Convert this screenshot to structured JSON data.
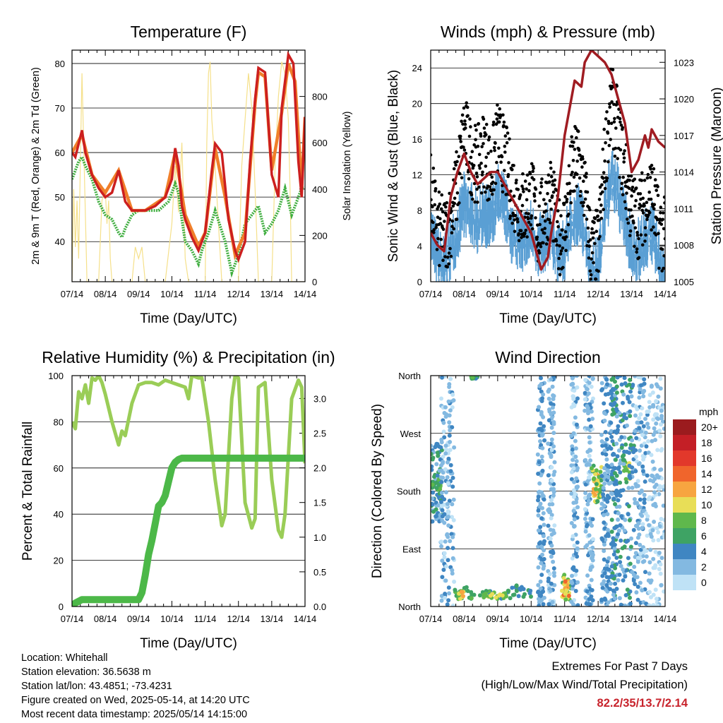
{
  "colors": {
    "temp2m": "#cc1f1f",
    "temp9m": "#f07f2a",
    "dew": "#3fae3f",
    "solar": "#f5e08a",
    "wind": "#5a9fd4",
    "gust": "#000000",
    "pressure": "#a01c22",
    "rh": "#9acd57",
    "rain": "#4cb848",
    "extremes": "#c8232c"
  },
  "footer": {
    "location": "Location: Whitehall",
    "elevation": "Station elevation: 36.5638 m",
    "latlon": "Station lat/lon: 43.4851; -73.4231",
    "created": "Figure created on Wed, 2025-05-14, at 14:20 UTC",
    "recent": "Most recent data timestamp: 2025/05/14 14:15:00"
  },
  "extremes": {
    "title": "Extremes For Past 7 Days",
    "subtitle": "(High/Low/Max Wind/Total Precipitation)",
    "values": "82.2/35/13.7/2.14"
  },
  "chart_data": [
    {
      "type": "line",
      "title": "Temperature (F)",
      "xlabel": "Time (Day/UTC)",
      "ylabel": "2m & 9m T (Red, Orange) & 2m Td (Green)",
      "y2label": "Solar Insolation (Yellow)",
      "xticks": [
        "07/14",
        "08/14",
        "09/14",
        "10/14",
        "11/14",
        "12/14",
        "13/14",
        "14/14"
      ],
      "xlim": [
        0,
        7
      ],
      "ylim": [
        31,
        83
      ],
      "yticks": [
        40,
        50,
        60,
        70,
        80
      ],
      "y2lim": [
        0,
        1000
      ],
      "y2ticks": [
        0,
        200,
        400,
        600,
        800
      ],
      "grid": true,
      "series": [
        {
          "name": "2m T",
          "x": [
            0,
            0.1,
            0.2,
            0.3,
            0.4,
            0.6,
            0.8,
            1.0,
            1.2,
            1.4,
            1.6,
            1.8,
            2.0,
            2.2,
            2.5,
            2.8,
            3.0,
            3.1,
            3.2,
            3.3,
            3.4,
            3.6,
            3.8,
            4.0,
            4.2,
            4.3,
            4.5,
            4.7,
            4.9,
            5.0,
            5.2,
            5.35,
            5.5,
            5.6,
            5.8,
            6.0,
            6.2,
            6.3,
            6.5,
            6.65,
            6.8,
            6.9,
            7.0
          ],
          "values": [
            60,
            59,
            62,
            65,
            60,
            55,
            52,
            50,
            51,
            56,
            49,
            47,
            47,
            47,
            48,
            50,
            54,
            61,
            57,
            48,
            45,
            41,
            38,
            42,
            56,
            62,
            60,
            45,
            38,
            36,
            40,
            58,
            72,
            79,
            78,
            55,
            50,
            70,
            82,
            80,
            58,
            50,
            68
          ]
        },
        {
          "name": "9m T",
          "x": [
            0,
            0.3,
            0.6,
            1.0,
            1.4,
            1.8,
            2.2,
            2.8,
            3.1,
            3.4,
            3.8,
            4.0,
            4.3,
            4.6,
            4.9,
            5.2,
            5.5,
            5.6,
            5.8,
            6.0,
            6.3,
            6.5,
            6.7,
            6.9,
            7.0
          ],
          "values": [
            60,
            64,
            55,
            51,
            56,
            47,
            47,
            50,
            60,
            46,
            39,
            42,
            61,
            50,
            37,
            42,
            71,
            78,
            77,
            56,
            69,
            80,
            76,
            52,
            68
          ]
        },
        {
          "name": "2m Td",
          "x": [
            0,
            0.1,
            0.2,
            0.3,
            0.4,
            0.6,
            0.8,
            1.0,
            1.2,
            1.4,
            1.5,
            1.6,
            1.8,
            2.0,
            2.3,
            2.6,
            2.9,
            3.1,
            3.2,
            3.3,
            3.4,
            3.6,
            3.8,
            3.9,
            4.1,
            4.3,
            4.6,
            4.8,
            4.9,
            5.0,
            5.2,
            5.4,
            5.6,
            5.8,
            6.0,
            6.2,
            6.4,
            6.6,
            6.8,
            6.9,
            7.0
          ],
          "values": [
            54,
            56,
            58,
            59,
            57,
            54,
            49,
            46,
            45,
            42,
            41,
            43,
            46,
            47,
            47,
            47,
            49,
            53,
            51,
            45,
            40,
            38,
            35,
            38,
            42,
            47,
            40,
            33,
            35,
            37,
            44,
            46,
            48,
            42,
            44,
            47,
            52,
            46,
            50,
            52,
            52
          ]
        },
        {
          "name": "Solar",
          "axis": "y2",
          "x": [
            0,
            0.05,
            0.1,
            0.15,
            0.2,
            0.3,
            0.45,
            0.5,
            0.6,
            0.8,
            0.9,
            1.0,
            1.05,
            1.1,
            1.15,
            1.2,
            1.3,
            1.35,
            1.5,
            1.6,
            1.8,
            1.9,
            2.0,
            2.1,
            2.2,
            2.3,
            2.8,
            3.0,
            3.1,
            3.2,
            3.3,
            3.4,
            3.5,
            3.8,
            4.0,
            4.05,
            4.1,
            4.15,
            4.2,
            4.3,
            4.5,
            4.6,
            4.8,
            5.0,
            5.1,
            5.2,
            5.25,
            5.3,
            5.4,
            5.5,
            5.6,
            5.8,
            6.0,
            6.1,
            6.2,
            6.3,
            6.4,
            6.5,
            6.55,
            6.6,
            6.8,
            6.9,
            7.0
          ],
          "values": [
            0,
            400,
            150,
            350,
            100,
            900,
            0,
            0,
            0,
            0,
            350,
            400,
            250,
            350,
            100,
            0,
            0,
            0,
            0,
            0,
            0,
            150,
            100,
            150,
            0,
            0,
            0,
            250,
            500,
            300,
            600,
            100,
            0,
            0,
            0,
            600,
            900,
            950,
            700,
            500,
            0,
            0,
            0,
            0,
            500,
            700,
            800,
            900,
            750,
            400,
            0,
            0,
            0,
            500,
            800,
            950,
            900,
            700,
            400,
            0,
            0,
            0,
            0
          ]
        }
      ]
    },
    {
      "type": "scatter",
      "title": "Winds (mph) & Pressure (mb)",
      "xlabel": "Time (Day/UTC)",
      "ylabel": "Sonic Wind & Gust (Blue, Black)",
      "y2label": "Station Pressure (Maroon)",
      "xticks": [
        "07/14",
        "08/14",
        "09/14",
        "10/14",
        "11/14",
        "12/14",
        "13/14",
        "14/14"
      ],
      "xlim": [
        0,
        7
      ],
      "ylim": [
        0,
        26
      ],
      "yticks": [
        0,
        4,
        8,
        12,
        16,
        20,
        24
      ],
      "y2lim": [
        1005,
        1024
      ],
      "y2ticks": [
        1005,
        1008,
        1011,
        1014,
        1017,
        1020,
        1023
      ],
      "grid": true,
      "series": [
        {
          "name": "Pressure",
          "axis": "y2",
          "x": [
            0,
            0.2,
            0.4,
            0.6,
            0.8,
            1.0,
            1.2,
            1.4,
            1.6,
            1.8,
            2.0,
            2.2,
            2.4,
            2.6,
            2.8,
            3.0,
            3.2,
            3.3,
            3.4,
            3.5,
            3.6,
            3.8,
            4.0,
            4.2,
            4.3,
            4.5,
            4.6,
            4.8,
            5.0,
            5.2,
            5.4,
            5.6,
            5.8,
            6.0,
            6.2,
            6.4,
            6.5,
            6.6,
            6.8,
            7.0
          ],
          "values": [
            1009,
            1008,
            1007.5,
            1012,
            1014,
            1015.5,
            1014,
            1013,
            1013.5,
            1014,
            1014,
            1013,
            1012,
            1011,
            1010,
            1009,
            1007,
            1006,
            1006.5,
            1007,
            1009,
            1012,
            1017,
            1020,
            1021.5,
            1021,
            1023,
            1024,
            1023.5,
            1023,
            1022,
            1020,
            1018,
            1014,
            1015,
            1017,
            1016,
            1017.5,
            1016.5,
            1016
          ]
        },
        {
          "name": "Sonic Wind",
          "x": [
            0,
            0.2,
            0.4,
            0.6,
            0.8,
            1.0,
            1.2,
            1.4,
            1.6,
            1.8,
            2.0,
            2.2,
            2.4,
            2.6,
            2.8,
            3.0,
            3.2,
            3.4,
            3.6,
            3.8,
            4.0,
            4.2,
            4.4,
            4.6,
            4.8,
            5.0,
            5.2,
            5.4,
            5.6,
            5.8,
            6.0,
            6.2,
            6.4,
            6.6,
            6.8,
            7.0
          ],
          "values": [
            6,
            3,
            2,
            4,
            6,
            9,
            8,
            7,
            8,
            7,
            10,
            9,
            6,
            5,
            5,
            6,
            4,
            5,
            6,
            3,
            4,
            7,
            8,
            6,
            1,
            2,
            8,
            12,
            10,
            7,
            4,
            4,
            5,
            6,
            3,
            2
          ]
        },
        {
          "name": "Gust",
          "x": [
            0,
            0.2,
            0.4,
            0.6,
            0.8,
            1.0,
            1.2,
            1.4,
            1.6,
            1.8,
            2.0,
            2.2,
            2.4,
            2.6,
            2.8,
            3.0,
            3.2,
            3.4,
            3.6,
            3.8,
            4.0,
            4.2,
            4.4,
            4.6,
            4.8,
            5.0,
            5.2,
            5.4,
            5.6,
            5.8,
            6.0,
            6.2,
            6.4,
            6.6,
            6.8,
            7.0
          ],
          "values": [
            10,
            6,
            5,
            7,
            11,
            17,
            14,
            13,
            15,
            12,
            16,
            14,
            11,
            9,
            8,
            10,
            6,
            8,
            10,
            5,
            6,
            12,
            14,
            10,
            3,
            4,
            14,
            20,
            17,
            12,
            8,
            7,
            9,
            10,
            6,
            5
          ]
        }
      ]
    },
    {
      "type": "line",
      "title": "Relative Humidity (%) & Precipitation (in)",
      "xlabel": "Time (Day/UTC)",
      "ylabel": "Percent & Total Rainfall",
      "xticks": [
        "07/14",
        "08/14",
        "09/14",
        "10/14",
        "11/14",
        "12/14",
        "13/14",
        "14/14"
      ],
      "xlim": [
        0,
        7
      ],
      "ylim": [
        0,
        100
      ],
      "yticks": [
        0,
        20,
        40,
        60,
        80,
        100
      ],
      "y2lim": [
        0,
        3.33
      ],
      "y2ticks": [
        "0.0",
        "0.5",
        "1.0",
        "1.5",
        "2.0",
        "2.5",
        "3.0"
      ],
      "grid": true,
      "series": [
        {
          "name": "RH",
          "x": [
            0,
            0.1,
            0.2,
            0.3,
            0.4,
            0.5,
            0.6,
            0.7,
            0.8,
            0.9,
            1.0,
            1.2,
            1.4,
            1.5,
            1.6,
            1.8,
            2.0,
            2.2,
            2.4,
            2.6,
            2.8,
            3.0,
            3.2,
            3.4,
            3.5,
            3.6,
            3.8,
            3.9,
            4.1,
            4.3,
            4.5,
            4.6,
            4.8,
            4.9,
            5.0,
            5.2,
            5.4,
            5.5,
            5.6,
            5.8,
            6.0,
            6.2,
            6.3,
            6.4,
            6.6,
            6.8,
            6.9,
            7.0
          ],
          "values": [
            80,
            77,
            93,
            90,
            96,
            88,
            99,
            98,
            100,
            97,
            92,
            80,
            70,
            76,
            74,
            88,
            96,
            97,
            97,
            96,
            98,
            97,
            96,
            95,
            90,
            100,
            99,
            99,
            80,
            55,
            35,
            40,
            90,
            100,
            99,
            45,
            34,
            38,
            95,
            97,
            55,
            33,
            30,
            40,
            90,
            98,
            95,
            62
          ]
        },
        {
          "name": "Precipitation",
          "axis": "y2",
          "x": [
            0,
            0.1,
            0.3,
            0.5,
            1.0,
            1.5,
            2.0,
            2.1,
            2.2,
            2.3,
            2.4,
            2.5,
            2.6,
            2.7,
            2.8,
            2.9,
            3.0,
            3.1,
            3.2,
            3.3,
            4.0,
            5.0,
            6.0,
            7.0
          ],
          "values": [
            0,
            0.05,
            0.1,
            0.1,
            0.1,
            0.1,
            0.1,
            0.2,
            0.45,
            0.75,
            0.95,
            1.2,
            1.45,
            1.5,
            1.6,
            1.8,
            2.0,
            2.08,
            2.12,
            2.14,
            2.14,
            2.14,
            2.14,
            2.14
          ]
        }
      ]
    },
    {
      "type": "scatter",
      "title": "Wind Direction",
      "xlabel": "Time (Day/UTC)",
      "ylabel": "Direction (Colored By Speed)",
      "xticks": [
        "07/14",
        "08/14",
        "09/14",
        "10/14",
        "11/14",
        "12/14",
        "13/14",
        "14/14"
      ],
      "xlim": [
        0,
        7
      ],
      "ylim": [
        0,
        360
      ],
      "ytick_labels": [
        "North",
        "East",
        "South",
        "West",
        "North"
      ],
      "ytick_values": [
        0,
        90,
        180,
        270,
        360
      ],
      "grid": true,
      "colorbar": {
        "title": "mph",
        "labels": [
          "20+",
          "18",
          "16",
          "14",
          "12",
          "10",
          "8",
          "6",
          "4",
          "2",
          "0"
        ],
        "colors": [
          "#9b1b1e",
          "#c41f26",
          "#e2382b",
          "#f0652c",
          "#f7a540",
          "#e8de57",
          "#5fb84c",
          "#3ea364",
          "#3f86c2",
          "#83b9e1",
          "#bfe2f6"
        ]
      },
      "clusters": [
        {
          "x0": 0.0,
          "x1": 0.35,
          "y0": 130,
          "y1": 260,
          "speed": 4
        },
        {
          "x0": 0.0,
          "x1": 0.3,
          "y0": 180,
          "y1": 200,
          "speed": 7
        },
        {
          "x0": 0.3,
          "x1": 0.7,
          "y0": 0,
          "y1": 360,
          "speed": 2
        },
        {
          "x0": 0.7,
          "x1": 1.1,
          "y0": 10,
          "y1": 30,
          "speed": 7
        },
        {
          "x0": 0.8,
          "x1": 1.0,
          "y0": 12,
          "y1": 25,
          "speed": 10
        },
        {
          "x0": 1.1,
          "x1": 2.4,
          "y0": 12,
          "y1": 25,
          "speed": 6
        },
        {
          "x0": 1.5,
          "x1": 2.3,
          "y0": 14,
          "y1": 22,
          "speed": 9
        },
        {
          "x0": 2.4,
          "x1": 3.0,
          "y0": 15,
          "y1": 35,
          "speed": 5
        },
        {
          "x0": 3.2,
          "x1": 3.4,
          "y0": 0,
          "y1": 360,
          "speed": 3
        },
        {
          "x0": 3.5,
          "x1": 3.7,
          "y0": 0,
          "y1": 360,
          "speed": 2
        },
        {
          "x0": 3.9,
          "x1": 4.2,
          "y0": 10,
          "y1": 50,
          "speed": 8
        },
        {
          "x0": 3.95,
          "x1": 4.15,
          "y0": 15,
          "y1": 40,
          "speed": 12
        },
        {
          "x0": 4.2,
          "x1": 4.4,
          "y0": 0,
          "y1": 360,
          "speed": 2
        },
        {
          "x0": 4.6,
          "x1": 4.85,
          "y0": 0,
          "y1": 360,
          "speed": 2
        },
        {
          "x0": 4.85,
          "x1": 5.05,
          "y0": 165,
          "y1": 215,
          "speed": 11
        },
        {
          "x0": 4.8,
          "x1": 5.1,
          "y0": 160,
          "y1": 220,
          "speed": 8
        },
        {
          "x0": 5.1,
          "x1": 5.4,
          "y0": 0,
          "y1": 360,
          "speed": 3
        },
        {
          "x0": 5.4,
          "x1": 5.6,
          "y0": 0,
          "y1": 360,
          "speed": 4
        },
        {
          "x0": 5.75,
          "x1": 5.95,
          "y0": 190,
          "y1": 230,
          "speed": 9
        },
        {
          "x0": 5.6,
          "x1": 6.1,
          "y0": 0,
          "y1": 360,
          "speed": 4
        },
        {
          "x0": 6.1,
          "x1": 6.5,
          "y0": 0,
          "y1": 360,
          "speed": 2
        },
        {
          "x0": 6.5,
          "x1": 7.0,
          "y0": 0,
          "y1": 360,
          "speed": 1
        },
        {
          "x0": 1.2,
          "x1": 1.4,
          "y0": 355,
          "y1": 360,
          "speed": 6
        }
      ]
    }
  ]
}
